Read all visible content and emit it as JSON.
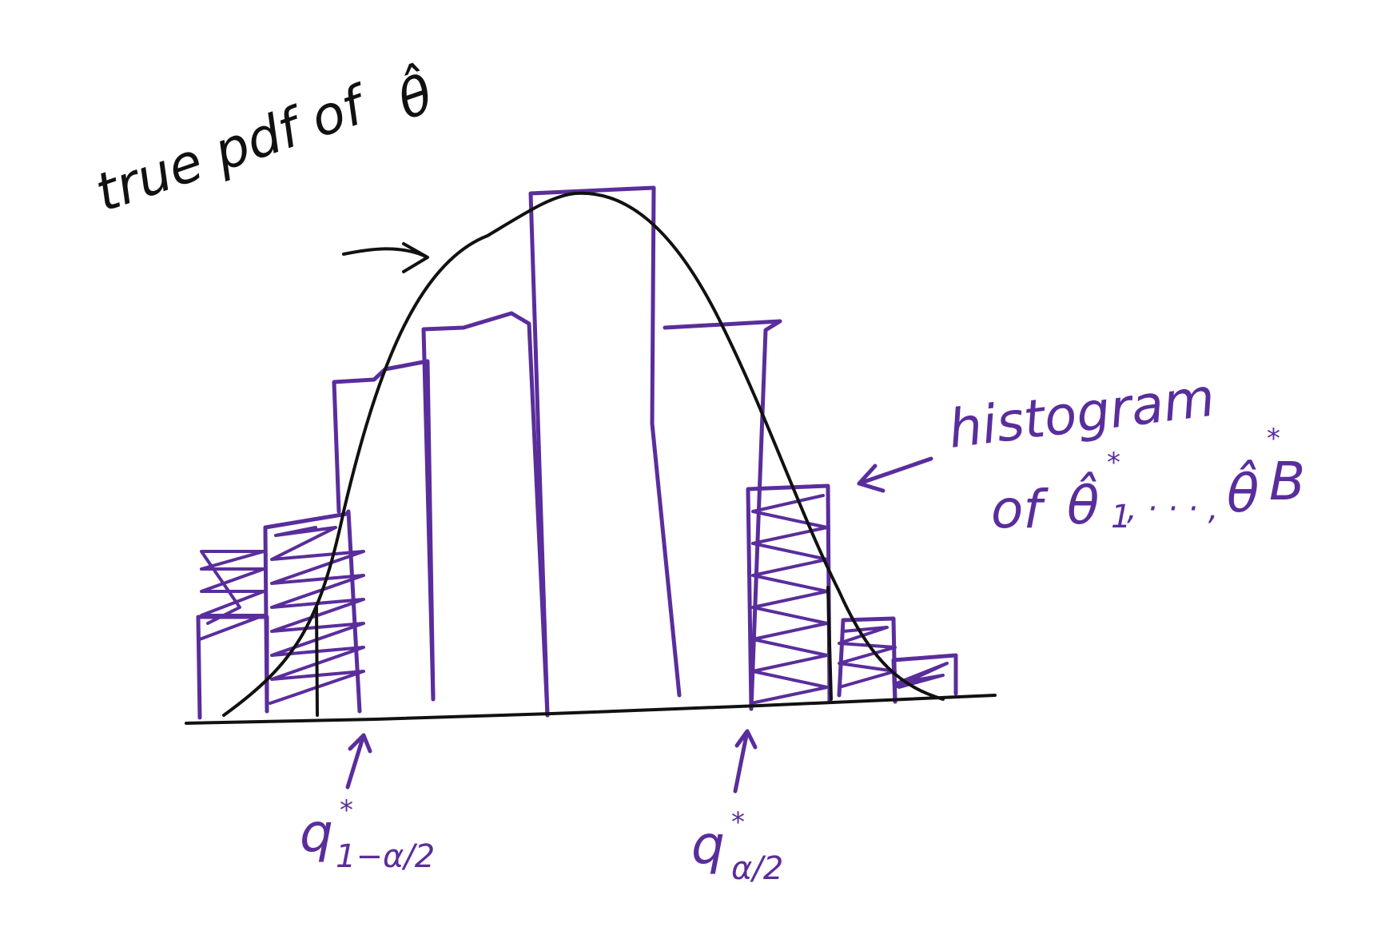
{
  "annotations": {
    "true_pdf": {
      "text": "true pdf of",
      "symbol": "θ̂"
    },
    "histogram": {
      "line1": "histogram",
      "of": "of",
      "theta_first": "θ̂",
      "star": "*",
      "sub_first": "1",
      "dots": ", · · · ,",
      "theta_last": "θ̂",
      "sub_last": "B"
    },
    "q_lower": {
      "q": "q",
      "star": "*",
      "sub": "1−α/2"
    },
    "q_upper": {
      "q": "q",
      "star": "*",
      "sub": "α/2"
    }
  },
  "histogram_bars": [
    {
      "relative_height": 0.19,
      "shaded": true
    },
    {
      "relative_height": 0.37,
      "shaded": true
    },
    {
      "relative_height": 0.66,
      "shaded": false
    },
    {
      "relative_height": 0.76,
      "shaded": false
    },
    {
      "relative_height": 1.0,
      "shaded": false
    },
    {
      "relative_height": 0.73,
      "shaded": false
    },
    {
      "relative_height": 0.4,
      "shaded": true
    },
    {
      "relative_height": 0.15,
      "shaded": true
    },
    {
      "relative_height": 0.09,
      "shaded": true
    }
  ],
  "colors": {
    "ink_black": "#111111",
    "ink_purple": "#5a2d9c",
    "background": "#ffffff"
  }
}
